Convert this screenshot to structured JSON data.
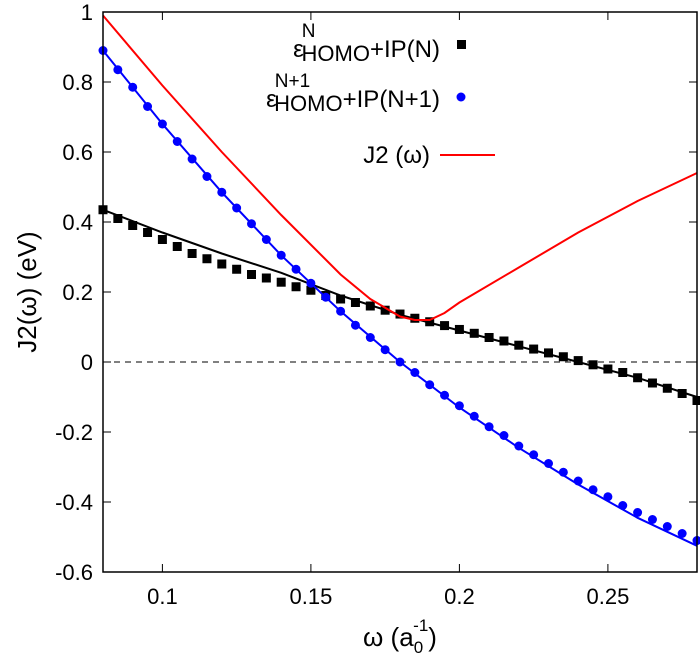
{
  "chart_data": {
    "type": "line",
    "xlabel": "ω (a0-1)",
    "xlabel_parts": {
      "main": "ω (a",
      "sub": "0",
      "sup": "-1",
      "close": ")"
    },
    "ylabel": "J2(ω) (eV)",
    "xlim": [
      0.08,
      0.28
    ],
    "ylim": [
      -0.6,
      1
    ],
    "xticks": [
      "0.1",
      "0.15",
      "0.2",
      "0.25"
    ],
    "xtick_values": [
      0.1,
      0.15,
      0.2,
      0.25
    ],
    "yticks": [
      "-0.6",
      "-0.4",
      "-0.2",
      "0",
      "0.2",
      "0.4",
      "0.6",
      "0.8",
      "1"
    ],
    "ytick_values": [
      -0.6,
      -0.4,
      -0.2,
      0,
      0.2,
      0.4,
      0.6,
      0.8,
      1
    ],
    "grid": false,
    "legend_position": "top-right",
    "reference_line": {
      "y": 0,
      "style": "dashed",
      "color": "#000000"
    },
    "points_x": [
      0.08,
      0.085,
      0.09,
      0.095,
      0.1,
      0.105,
      0.11,
      0.115,
      0.12,
      0.125,
      0.13,
      0.135,
      0.14,
      0.145,
      0.15,
      0.155,
      0.16,
      0.165,
      0.17,
      0.175,
      0.18,
      0.185,
      0.19,
      0.195,
      0.2,
      0.205,
      0.21,
      0.215,
      0.22,
      0.225,
      0.23,
      0.235,
      0.24,
      0.245,
      0.25,
      0.255,
      0.26,
      0.265,
      0.27,
      0.275,
      0.28
    ],
    "series": [
      {
        "name": "ε^N_HOMO+IP(N)",
        "legend": {
          "eps": "ε",
          "sup": "N",
          "sub": "HOMO",
          "rest": "+IP(N)"
        },
        "marker": "square",
        "color": "#000000",
        "values": [
          0.435,
          0.41,
          0.39,
          0.37,
          0.35,
          0.33,
          0.31,
          0.295,
          0.28,
          0.265,
          0.25,
          0.24,
          0.228,
          0.215,
          0.205,
          0.19,
          0.18,
          0.17,
          0.16,
          0.148,
          0.137,
          0.125,
          0.115,
          0.104,
          0.093,
          0.082,
          0.07,
          0.06,
          0.048,
          0.037,
          0.026,
          0.015,
          0.004,
          -0.008,
          -0.02,
          -0.03,
          -0.045,
          -0.06,
          -0.075,
          -0.09,
          -0.11
        ],
        "fit": {
          "x": [
            0.08,
            0.1,
            0.12,
            0.14,
            0.16,
            0.18,
            0.2,
            0.22,
            0.24,
            0.26,
            0.28
          ],
          "y": [
            0.435,
            0.37,
            0.31,
            0.255,
            0.19,
            0.135,
            0.09,
            0.045,
            0.0,
            -0.045,
            -0.1
          ]
        }
      },
      {
        "name": "ε^N+1_HOMO+IP(N+1)",
        "legend": {
          "eps": "ε",
          "sup": "N+1",
          "sub": "HOMO",
          "rest": "+IP(N+1)"
        },
        "marker": "circle",
        "color": "#0000ff",
        "values": [
          0.89,
          0.835,
          0.785,
          0.73,
          0.68,
          0.63,
          0.58,
          0.53,
          0.485,
          0.44,
          0.395,
          0.35,
          0.305,
          0.265,
          0.225,
          0.185,
          0.145,
          0.105,
          0.07,
          0.035,
          0.0,
          -0.03,
          -0.065,
          -0.095,
          -0.125,
          -0.155,
          -0.185,
          -0.21,
          -0.24,
          -0.265,
          -0.29,
          -0.315,
          -0.34,
          -0.365,
          -0.385,
          -0.41,
          -0.43,
          -0.45,
          -0.47,
          -0.49,
          -0.51
        ],
        "fit": {
          "x": [
            0.08,
            0.1,
            0.12,
            0.14,
            0.16,
            0.18,
            0.2,
            0.22,
            0.24,
            0.26,
            0.28
          ],
          "y": [
            0.89,
            0.68,
            0.485,
            0.305,
            0.145,
            0.0,
            -0.13,
            -0.245,
            -0.35,
            -0.445,
            -0.525
          ]
        }
      },
      {
        "name": "J2 (ω)",
        "legend": {
          "text": "J2 (ω)"
        },
        "marker": "line",
        "color": "#ff0000",
        "x": [
          0.08,
          0.1,
          0.12,
          0.14,
          0.16,
          0.17,
          0.18,
          0.185,
          0.19,
          0.195,
          0.2,
          0.22,
          0.24,
          0.26,
          0.28
        ],
        "values": [
          0.99,
          0.79,
          0.6,
          0.42,
          0.25,
          0.18,
          0.13,
          0.12,
          0.12,
          0.14,
          0.17,
          0.27,
          0.37,
          0.46,
          0.54
        ]
      }
    ]
  }
}
